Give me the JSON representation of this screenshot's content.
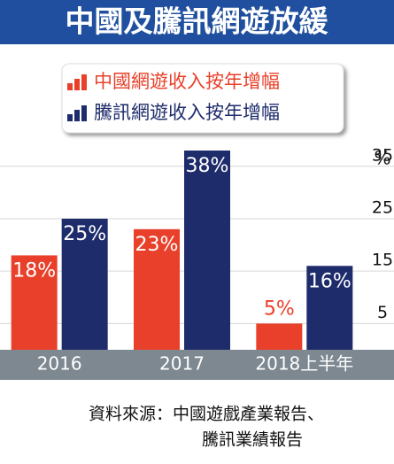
{
  "chart_data": {
    "type": "bar",
    "title": "中國及騰訊網遊放緩",
    "categories": [
      "2016",
      "2017",
      "2018上半年"
    ],
    "series": [
      {
        "name": "中國網遊收入按年增幅",
        "color": "#e8402a",
        "values": [
          18,
          23,
          5
        ],
        "value_labels": [
          "18%",
          "23%",
          "5%"
        ]
      },
      {
        "name": "騰訊網遊收入按年增幅",
        "color": "#1e2c6b",
        "values": [
          25,
          38,
          16
        ],
        "value_labels": [
          "25%",
          "38%",
          "16%"
        ]
      }
    ],
    "y_label": "%",
    "ylim": [
      0,
      38
    ],
    "yticks": [
      5,
      15,
      25,
      35
    ],
    "grid": true,
    "source": [
      "資料來源：中國遊戲產業報告、",
      "騰訊業績報告"
    ]
  }
}
